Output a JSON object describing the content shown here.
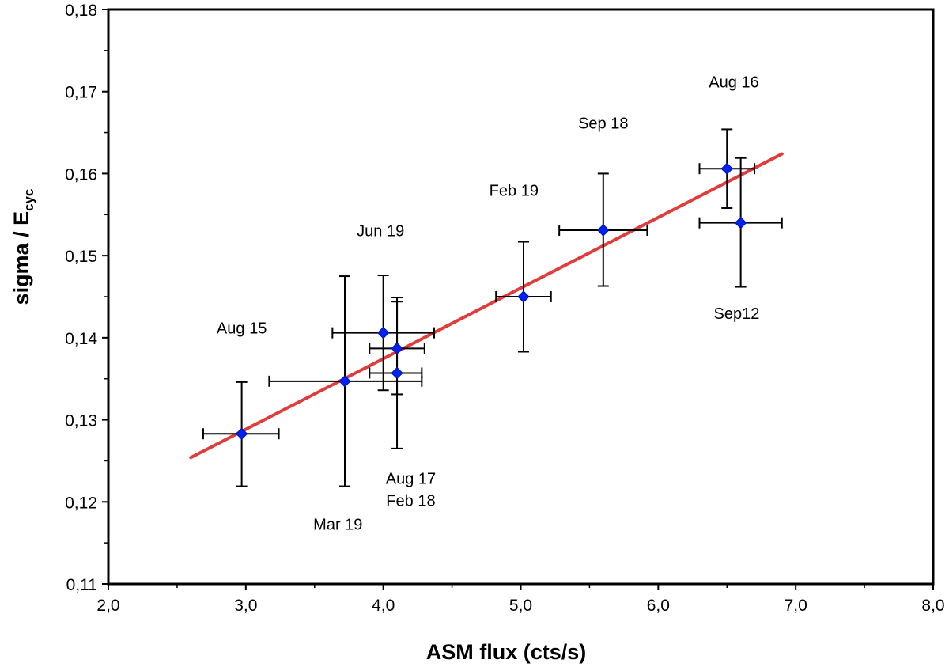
{
  "chart_data": {
    "type": "scatter",
    "xlabel": "ASM flux  (cts/s)",
    "ylabel_main": "sigma / E",
    "ylabel_sub": "cyc",
    "xlim": [
      2.0,
      8.0
    ],
    "ylim": [
      0.11,
      0.18
    ],
    "xticks": [
      "2,0",
      "3,0",
      "4,0",
      "5,0",
      "6,0",
      "7,0",
      "8,0"
    ],
    "yticks": [
      "0,11",
      "0,12",
      "0,13",
      "0,14",
      "0,15",
      "0,16",
      "0,17",
      "0,18"
    ],
    "grid": false,
    "marker_color": "#0022ee",
    "fit_color": "#e03c3c",
    "points": [
      {
        "x": 2.97,
        "y": 0.1283,
        "xerr": [
          2.69,
          3.24
        ],
        "yerr": [
          0.1219,
          0.1346
        ]
      },
      {
        "x": 3.72,
        "y": 0.1347,
        "xerr": [
          3.17,
          4.28
        ],
        "yerr": [
          0.1219,
          0.1475
        ]
      },
      {
        "x": 4.0,
        "y": 0.1406,
        "xerr": [
          3.63,
          4.37
        ],
        "yerr": [
          0.1336,
          0.1476
        ]
      },
      {
        "x": 4.1,
        "y": 0.1387,
        "xerr": [
          3.9,
          4.3
        ],
        "yerr": [
          0.1331,
          0.1449
        ]
      },
      {
        "x": 4.1,
        "y": 0.1357,
        "xerr": [
          3.9,
          4.28
        ],
        "yerr": [
          0.1265,
          0.1444
        ]
      },
      {
        "x": 5.02,
        "y": 0.145,
        "xerr": [
          4.82,
          5.22
        ],
        "yerr": [
          0.1383,
          0.1517
        ]
      },
      {
        "x": 5.6,
        "y": 0.1531,
        "xerr": [
          5.28,
          5.92
        ],
        "yerr": [
          0.1463,
          0.16
        ]
      },
      {
        "x": 6.5,
        "y": 0.1606,
        "xerr": [
          6.3,
          6.7
        ],
        "yerr": [
          0.1558,
          0.1654
        ]
      },
      {
        "x": 6.6,
        "y": 0.154,
        "xerr": [
          6.3,
          6.9
        ],
        "yerr": [
          0.1462,
          0.1619
        ]
      }
    ],
    "fit_line": {
      "x": [
        2.6,
        6.9
      ],
      "y": [
        0.1254,
        0.1624
      ]
    },
    "annotations": [
      {
        "text": "Aug 16",
        "x": 6.55,
        "y": 0.1705
      },
      {
        "text": "Sep 18",
        "x": 5.6,
        "y": 0.1655
      },
      {
        "text": "Feb 19",
        "x": 4.95,
        "y": 0.1573
      },
      {
        "text": "Jun 19",
        "x": 3.98,
        "y": 0.1524
      },
      {
        "text": "Aug 15",
        "x": 2.97,
        "y": 0.1405
      },
      {
        "text": "Sep12",
        "x": 6.57,
        "y": 0.1423
      },
      {
        "text": "Aug 17",
        "x": 4.2,
        "y": 0.1222
      },
      {
        "text": "Feb 18",
        "x": 4.2,
        "y": 0.1195
      },
      {
        "text": "Mar 19",
        "x": 3.67,
        "y": 0.1166
      }
    ]
  }
}
